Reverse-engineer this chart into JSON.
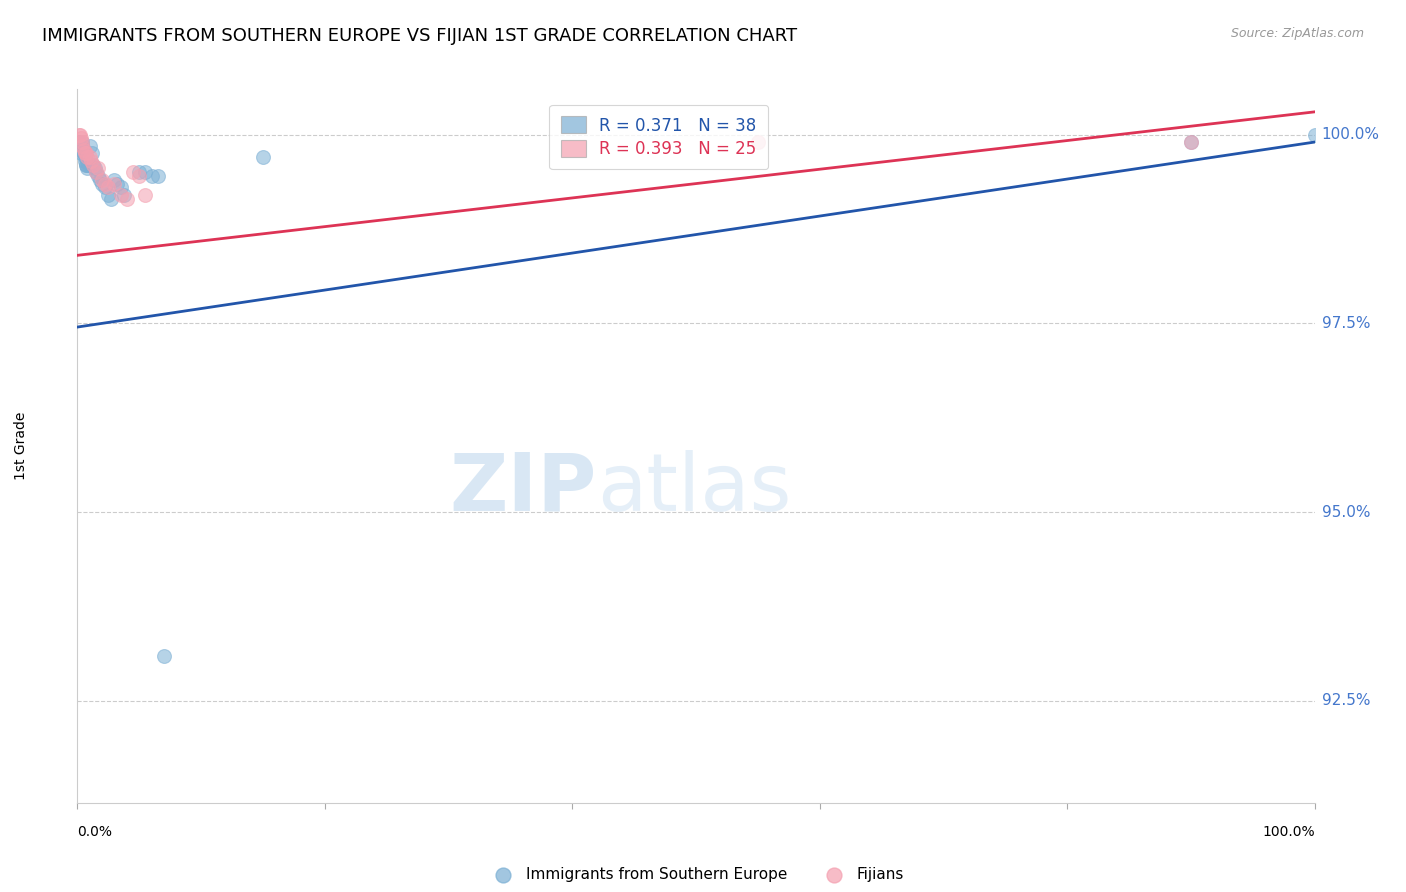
{
  "title": "IMMIGRANTS FROM SOUTHERN EUROPE VS FIJIAN 1ST GRADE CORRELATION CHART",
  "source": "Source: ZipAtlas.com",
  "ylabel": "1st Grade",
  "ytick_labels": [
    "92.5%",
    "95.0%",
    "97.5%",
    "100.0%"
  ],
  "ytick_values": [
    0.925,
    0.95,
    0.975,
    1.0
  ],
  "xlim": [
    0.0,
    1.0
  ],
  "ylim": [
    0.9115,
    1.006
  ],
  "legend_blue_label": "R = 0.371   N = 38",
  "legend_pink_label": "R = 0.393   N = 25",
  "watermark_zip": "ZIP",
  "watermark_atlas": "atlas",
  "blue_color": "#7BAFD4",
  "pink_color": "#F4A0B0",
  "trend_blue": "#2255AA",
  "trend_pink": "#DD3355",
  "blue_scatter_x": [
    0.001,
    0.002,
    0.003,
    0.003,
    0.004,
    0.004,
    0.005,
    0.005,
    0.006,
    0.006,
    0.007,
    0.007,
    0.008,
    0.009,
    0.01,
    0.01,
    0.012,
    0.013,
    0.014,
    0.015,
    0.017,
    0.018,
    0.02,
    0.022,
    0.025,
    0.027,
    0.03,
    0.032,
    0.035,
    0.038,
    0.05,
    0.055,
    0.06,
    0.065,
    0.07,
    0.15,
    0.9,
    1.0
  ],
  "blue_scatter_y": [
    0.999,
    0.9985,
    0.998,
    0.9975,
    0.999,
    0.9985,
    0.998,
    0.9975,
    0.997,
    0.9965,
    0.996,
    0.996,
    0.9955,
    0.996,
    0.9985,
    0.996,
    0.9975,
    0.996,
    0.9955,
    0.995,
    0.9945,
    0.994,
    0.9935,
    0.993,
    0.992,
    0.9915,
    0.994,
    0.9935,
    0.993,
    0.992,
    0.995,
    0.995,
    0.9945,
    0.9945,
    0.931,
    0.997,
    0.999,
    1.0
  ],
  "pink_scatter_x": [
    0.001,
    0.002,
    0.003,
    0.004,
    0.004,
    0.005,
    0.006,
    0.007,
    0.008,
    0.01,
    0.011,
    0.013,
    0.015,
    0.017,
    0.02,
    0.022,
    0.025,
    0.03,
    0.035,
    0.04,
    0.045,
    0.05,
    0.055,
    0.55,
    0.9
  ],
  "pink_scatter_y": [
    1.0,
    1.0,
    0.9995,
    0.999,
    0.9985,
    0.998,
    0.9975,
    0.9975,
    0.997,
    0.997,
    0.9965,
    0.996,
    0.995,
    0.9955,
    0.994,
    0.9935,
    0.993,
    0.9935,
    0.992,
    0.9915,
    0.995,
    0.9945,
    0.992,
    0.999,
    0.999
  ],
  "blue_trend_x": [
    0.0,
    1.0
  ],
  "blue_trend_y": [
    0.9745,
    0.999
  ],
  "pink_trend_x": [
    0.0,
    1.0
  ],
  "pink_trend_y": [
    0.984,
    1.003
  ],
  "grid_color": "#CCCCCC",
  "title_fontsize": 13,
  "axis_fontsize": 10,
  "scatter_size": 100
}
